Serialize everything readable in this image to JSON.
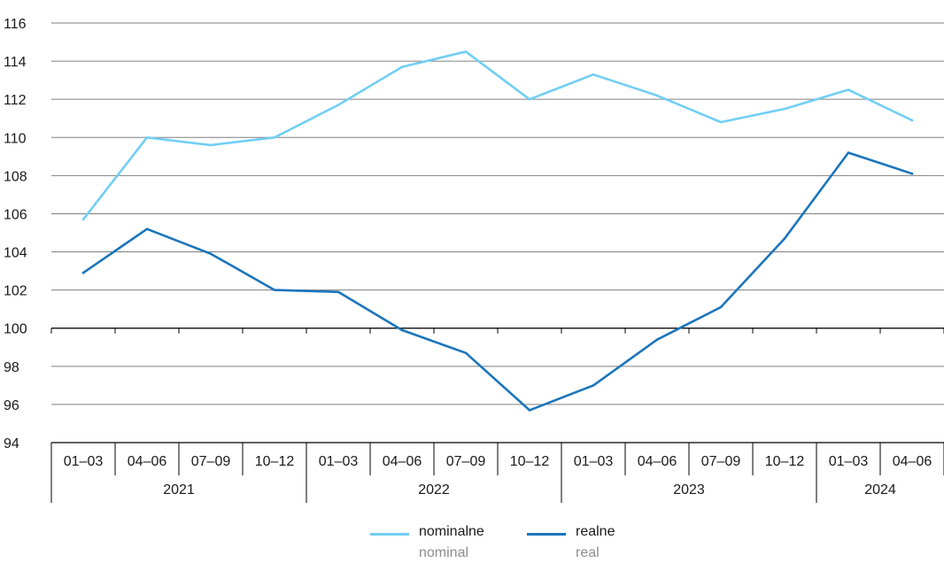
{
  "chart_data": {
    "type": "line",
    "title": "",
    "xlabel": "",
    "ylabel": "",
    "ylim": [
      94,
      116
    ],
    "yticks": [
      94,
      96,
      98,
      100,
      102,
      104,
      106,
      108,
      110,
      112,
      114,
      116
    ],
    "baseline": 100,
    "grid": "horizontal",
    "legend_position": "bottom-center",
    "categories": [
      "01–03",
      "04–06",
      "07–09",
      "10–12",
      "01–03",
      "04–06",
      "07–09",
      "10–12",
      "01–03",
      "04–06",
      "07–09",
      "10–12",
      "01–03",
      "04–06"
    ],
    "years": [
      {
        "label": "2021",
        "count": 4
      },
      {
        "label": "2022",
        "count": 4
      },
      {
        "label": "2023",
        "count": 4
      },
      {
        "label": "2024",
        "count": 2
      }
    ],
    "series": [
      {
        "name": "nominalne",
        "name_en": "nominal",
        "color": "#72CEF4",
        "values": [
          105.7,
          110.0,
          109.6,
          110.0,
          111.7,
          113.7,
          114.5,
          112.0,
          113.3,
          112.2,
          110.8,
          111.5,
          112.5,
          110.9
        ]
      },
      {
        "name": "realne",
        "name_en": "real",
        "color": "#1B75BB",
        "values": [
          102.9,
          105.2,
          103.9,
          102.0,
          101.9,
          99.9,
          98.7,
          95.7,
          97.0,
          99.4,
          101.1,
          104.7,
          109.2,
          108.1
        ]
      }
    ]
  }
}
